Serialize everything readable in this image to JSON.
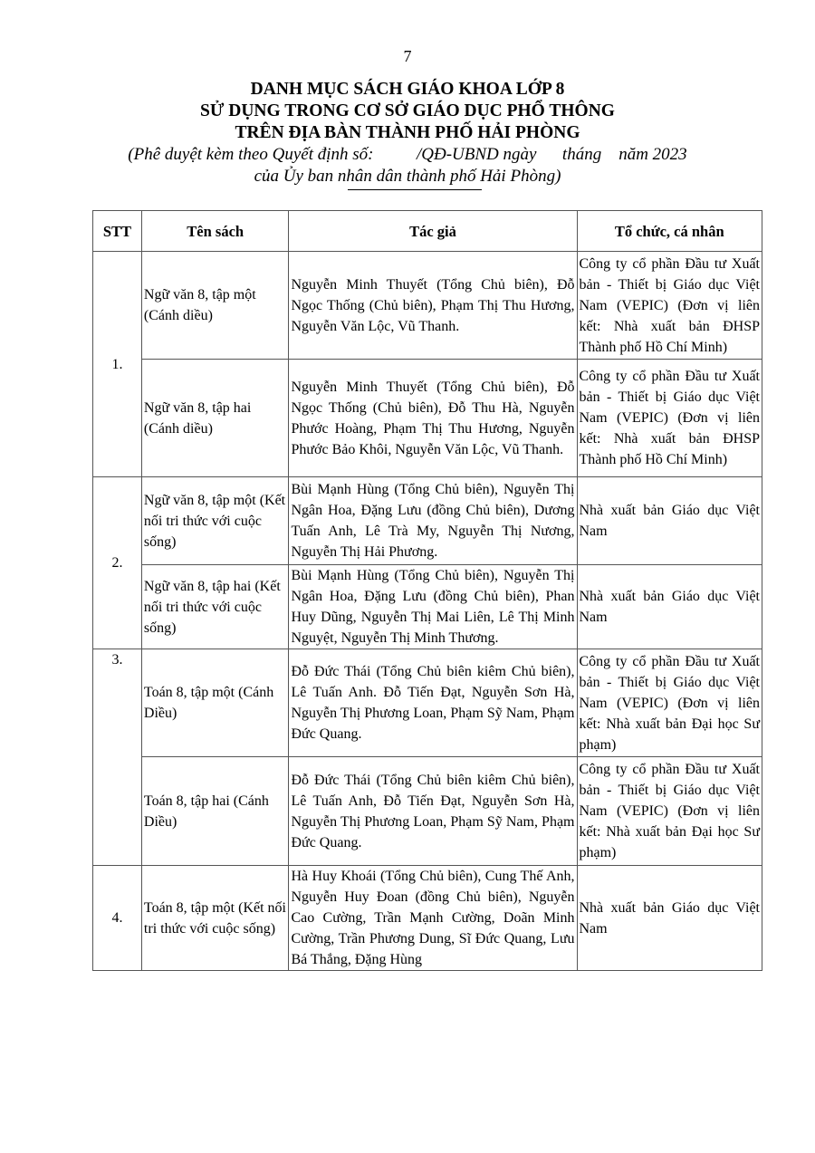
{
  "page_number": "7",
  "title": [
    "DANH MỤC SÁCH GIÁO KHOA LỚP 8",
    "SỬ DỤNG TRONG CƠ SỞ GIÁO DỤC PHỔ THÔNG",
    "TRÊN ĐỊA BÀN THÀNH PHỐ HẢI PHÒNG"
  ],
  "subtitle": [
    "(Phê duyệt kèm theo Quyết định số:          /QĐ-UBND ngày      tháng    năm 2023",
    "của Ủy ban nhân dân thành phố Hải Phòng)"
  ],
  "table": {
    "headers": [
      "STT",
      "Tên sách",
      "Tác giả",
      "Tổ chức, cá nhân"
    ],
    "groups": [
      {
        "stt": "1.",
        "rows": [
          {
            "book": "Ngữ văn 8, tập một (Cánh diều)",
            "authors": "Nguyễn Minh Thuyết (Tổng Chủ biên), Đỗ Ngọc Thống (Chủ biên), Phạm Thị Thu Hương, Nguyễn Văn Lộc, Vũ Thanh.",
            "org": "Công ty cổ phần Đầu tư Xuất bản - Thiết bị Giáo dục Việt Nam (VEPIC) (Đơn vị liên kết: Nhà xuất bản ĐHSP Thành phố Hồ Chí Minh)"
          },
          {
            "book": "Ngữ văn 8, tập hai (Cánh diều)",
            "authors": "Nguyễn Minh Thuyết (Tổng Chủ biên), Đỗ Ngọc Thống (Chủ biên), Đỗ Thu Hà, Nguyễn Phước Hoàng, Phạm Thị Thu Hương, Nguyễn Phước Bảo Khôi, Nguyễn Văn Lộc, Vũ Thanh.",
            "org": "Công ty cổ phần Đầu tư Xuất bản - Thiết bị Giáo dục Việt Nam (VEPIC) (Đơn vị liên kết: Nhà xuất bản ĐHSP Thành phố Hồ Chí Minh)"
          }
        ]
      },
      {
        "stt": "2.",
        "rows": [
          {
            "book": "Ngữ văn 8, tập một (Kết nối tri thức với cuộc sống)",
            "authors": "Bùi Mạnh Hùng (Tổng Chủ biên), Nguyễn Thị Ngân Hoa, Đặng Lưu (đồng Chủ biên), Dương Tuấn Anh, Lê Trà My, Nguyễn Thị Nương, Nguyễn Thị Hải Phương.",
            "org": "Nhà xuất bản Giáo dục Việt Nam"
          },
          {
            "book": "Ngữ văn 8, tập hai (Kết nối tri thức với cuộc sống)",
            "authors": "Bùi Mạnh Hùng (Tổng Chủ biên), Nguyễn Thị Ngân Hoa, Đặng Lưu (đồng Chủ biên), Phan Huy Dũng, Nguyễn Thị Mai Liên, Lê Thị Minh Nguyệt, Nguyễn Thị Minh Thương.",
            "org": "Nhà xuất bản Giáo dục Việt Nam"
          }
        ]
      },
      {
        "stt": "3.",
        "rows": [
          {
            "book": "Toán 8, tập một (Cánh Diều)",
            "authors": "Đỗ Đức Thái (Tổng Chủ biên kiêm Chủ biên), Lê Tuấn Anh. Đỗ Tiến Đạt, Nguyễn Sơn Hà, Nguyễn Thị Phương Loan, Phạm Sỹ Nam, Phạm Đức Quang.",
            "org": "Công ty cổ phần Đầu tư Xuất bản - Thiết bị Giáo dục Việt Nam (VEPIC) (Đơn vị liên kết: Nhà xuất bản Đại học Sư phạm)"
          },
          {
            "book": "Toán 8, tập hai (Cánh Diều)",
            "authors": "Đỗ Đức Thái (Tổng Chủ biên kiêm Chủ biên), Lê Tuấn Anh, Đỗ Tiến Đạt, Nguyễn Sơn Hà, Nguyễn Thị Phương Loan, Phạm Sỹ Nam, Phạm Đức Quang.",
            "org": "Công ty cổ phần Đầu tư Xuất bản - Thiết bị Giáo dục Việt Nam (VEPIC) (Đơn vị liên kết: Nhà xuất bản Đại học Sư phạm)"
          }
        ]
      },
      {
        "stt": "4.",
        "rows": [
          {
            "book": "Toán 8, tập một (Kết nối tri thức với cuộc sống)",
            "authors": "Hà Huy Khoái (Tổng Chủ biên), Cung Thế Anh, Nguyễn Huy Đoan (đồng Chủ biên), Nguyễn Cao Cường, Trần Mạnh Cường, Doãn Minh Cường, Trần Phương Dung, Sĩ Đức Quang, Lưu Bá Thắng, Đặng Hùng",
            "org": "Nhà xuất bản Giáo dục Việt Nam"
          }
        ]
      }
    ]
  }
}
